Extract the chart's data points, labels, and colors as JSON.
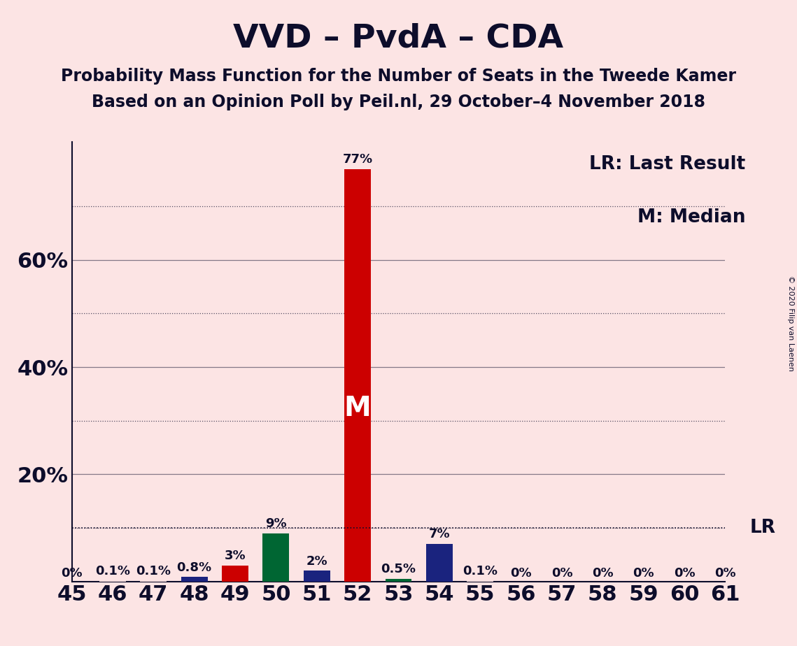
{
  "title": "VVD – PvdA – CDA",
  "subtitle1": "Probability Mass Function for the Number of Seats in the Tweede Kamer",
  "subtitle2": "Based on an Opinion Poll by Peil.nl, 29 October–4 November 2018",
  "copyright": "© 2020 Filip van Laenen",
  "categories": [
    45,
    46,
    47,
    48,
    49,
    50,
    51,
    52,
    53,
    54,
    55,
    56,
    57,
    58,
    59,
    60,
    61
  ],
  "values": [
    0.0,
    0.1,
    0.1,
    0.8,
    3.0,
    9.0,
    2.0,
    77.0,
    0.5,
    7.0,
    0.1,
    0.0,
    0.0,
    0.0,
    0.0,
    0.0,
    0.0
  ],
  "bar_colors": [
    "#fce4e4",
    "#fce4e4",
    "#fce4e4",
    "#1a237e",
    "#cc0000",
    "#006633",
    "#1a237e",
    "#cc0000",
    "#006633",
    "#1a237e",
    "#fce4e4",
    "#fce4e4",
    "#fce4e4",
    "#fce4e4",
    "#fce4e4",
    "#fce4e4",
    "#fce4e4"
  ],
  "labels": [
    "0%",
    "0.1%",
    "0.1%",
    "0.8%",
    "3%",
    "9%",
    "2%",
    "77%",
    "0.5%",
    "7%",
    "0.1%",
    "0%",
    "0%",
    "0%",
    "0%",
    "0%",
    "0%"
  ],
  "show_bar_label": [
    true,
    true,
    true,
    true,
    true,
    true,
    true,
    true,
    true,
    true,
    true,
    true,
    true,
    true,
    true,
    true,
    true
  ],
  "median_seat": 52,
  "lr_value": 10.0,
  "lr_label": "LR",
  "median_label": "M",
  "background_color": "#fce4e4",
  "ylim_max": 82,
  "yticks_solid": [
    20,
    40,
    60
  ],
  "yticks_dotted": [
    10,
    30,
    50,
    70
  ],
  "ytick_labeled": [
    20,
    40,
    60
  ],
  "ytick_labels_map": {
    "20": "20%",
    "40": "40%",
    "60": "60%"
  },
  "title_fontsize": 34,
  "subtitle_fontsize": 17,
  "axis_tick_fontsize": 22,
  "bar_label_fontsize": 13,
  "legend_fontsize": 19,
  "median_fontsize": 28,
  "lr_line_color": "#0d0d2b",
  "title_color": "#0d0d2b",
  "text_color": "#0d0d2b",
  "spine_color": "#0d0d2b",
  "legend_lr": "LR: Last Result",
  "legend_m": "M: Median"
}
